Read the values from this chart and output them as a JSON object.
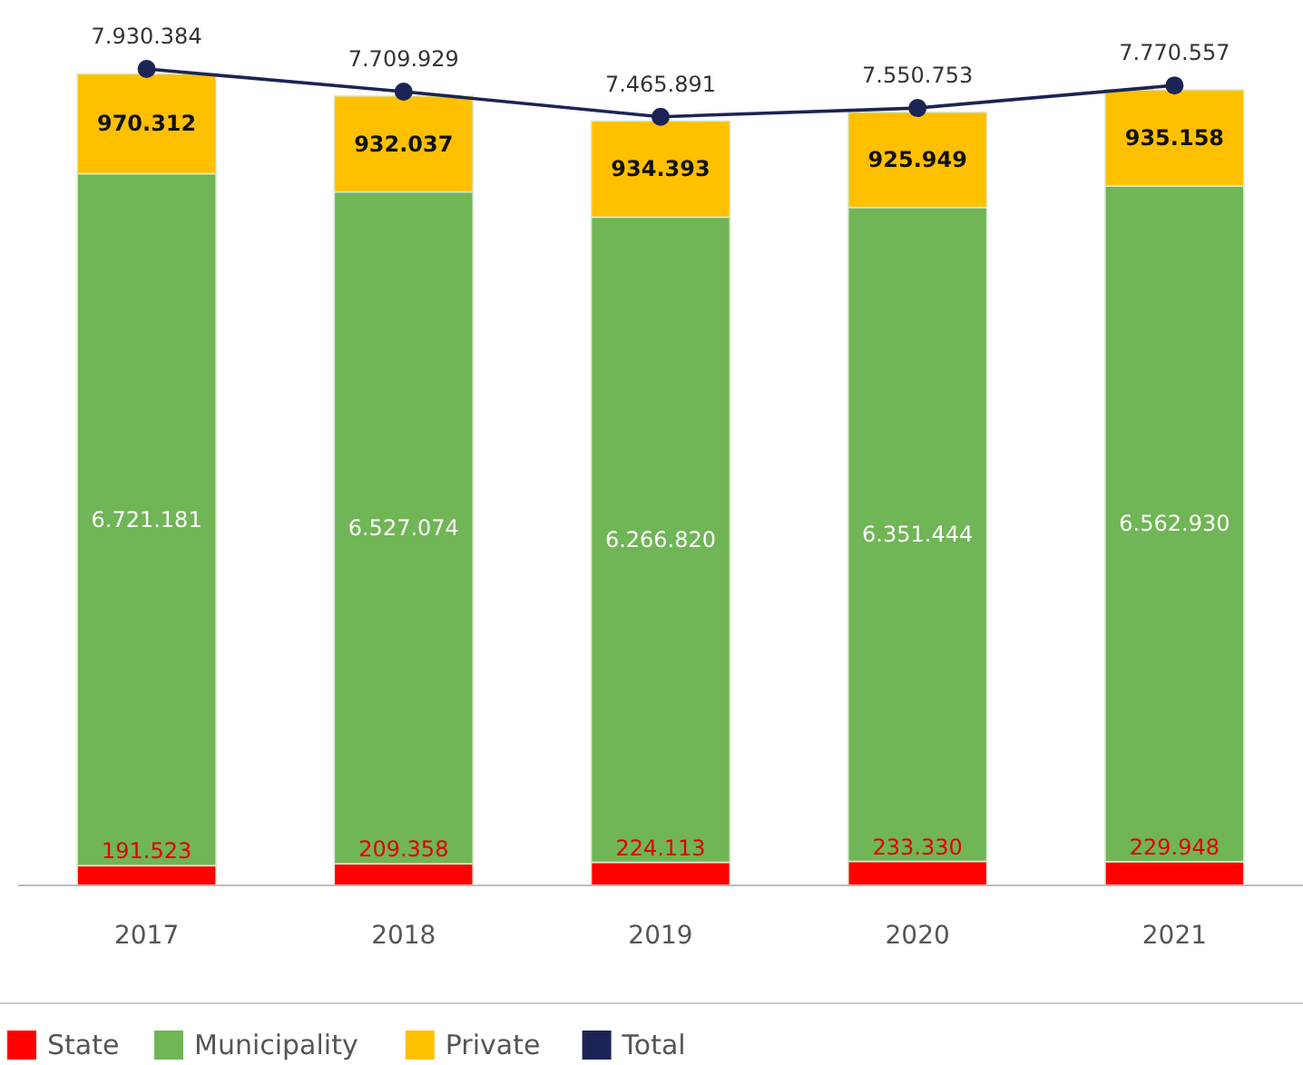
{
  "chart_data": {
    "type": "bar",
    "stacked": true,
    "categories": [
      "2017",
      "2018",
      "2019",
      "2020",
      "2021"
    ],
    "series": [
      {
        "name": "State",
        "color": "#ff0000",
        "values": [
          191523,
          209358,
          224113,
          233330,
          229948
        ],
        "value_labels": [
          "191.523",
          "209.358",
          "224.113",
          "233.330",
          "229.948"
        ]
      },
      {
        "name": "Municipality",
        "color": "#70b556",
        "values": [
          6721181,
          6527074,
          6266820,
          6351444,
          6562930
        ],
        "value_labels": [
          "6.721.181",
          "6.527.074",
          "6.266.820",
          "6.351.444",
          "6.562.930"
        ]
      },
      {
        "name": "Private",
        "color": "#ffc000",
        "values": [
          970312,
          932037,
          934393,
          925949,
          935158
        ],
        "value_labels": [
          "970.312",
          "932.037",
          "934.393",
          "925.949",
          "935.158"
        ]
      },
      {
        "name": "Total",
        "type": "line",
        "color": "#1c2455",
        "marker": "circle",
        "values": [
          7930384,
          7709929,
          7465891,
          7550753,
          7770557
        ],
        "value_labels": [
          "7.930.384",
          "7.709.929",
          "7.465.891",
          "7.550.753",
          "7.770.557"
        ]
      }
    ],
    "legend": "bottom",
    "grid": false
  }
}
